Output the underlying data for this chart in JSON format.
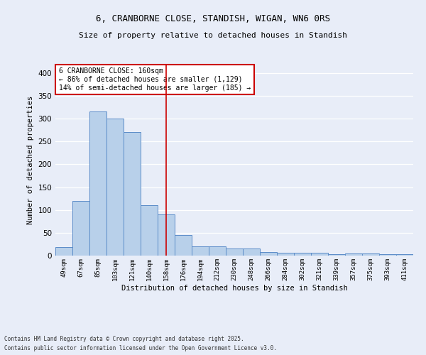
{
  "title_line1": "6, CRANBORNE CLOSE, STANDISH, WIGAN, WN6 0RS",
  "title_line2": "Size of property relative to detached houses in Standish",
  "xlabel": "Distribution of detached houses by size in Standish",
  "ylabel": "Number of detached properties",
  "bar_labels": [
    "49sqm",
    "67sqm",
    "85sqm",
    "103sqm",
    "121sqm",
    "140sqm",
    "158sqm",
    "176sqm",
    "194sqm",
    "212sqm",
    "230sqm",
    "248sqm",
    "266sqm",
    "284sqm",
    "302sqm",
    "321sqm",
    "339sqm",
    "357sqm",
    "375sqm",
    "393sqm",
    "411sqm"
  ],
  "bar_values": [
    18,
    120,
    315,
    300,
    270,
    110,
    90,
    45,
    20,
    20,
    15,
    15,
    8,
    7,
    6,
    6,
    3,
    5,
    5,
    3,
    3
  ],
  "bar_color": "#b8d0ea",
  "bar_edge_color": "#5b8cc8",
  "bg_color": "#e8edf8",
  "grid_color": "#ffffff",
  "vline_x_index": 6,
  "vline_color": "#cc0000",
  "annotation_text": "6 CRANBORNE CLOSE: 160sqm\n← 86% of detached houses are smaller (1,129)\n14% of semi-detached houses are larger (185) →",
  "annotation_box_color": "#ffffff",
  "annotation_box_edge": "#cc0000",
  "footer_line1": "Contains HM Land Registry data © Crown copyright and database right 2025.",
  "footer_line2": "Contains public sector information licensed under the Open Government Licence v3.0.",
  "ylim": [
    0,
    420
  ],
  "yticks": [
    0,
    50,
    100,
    150,
    200,
    250,
    300,
    350,
    400
  ],
  "figsize": [
    6.0,
    5.0
  ],
  "dpi": 100
}
